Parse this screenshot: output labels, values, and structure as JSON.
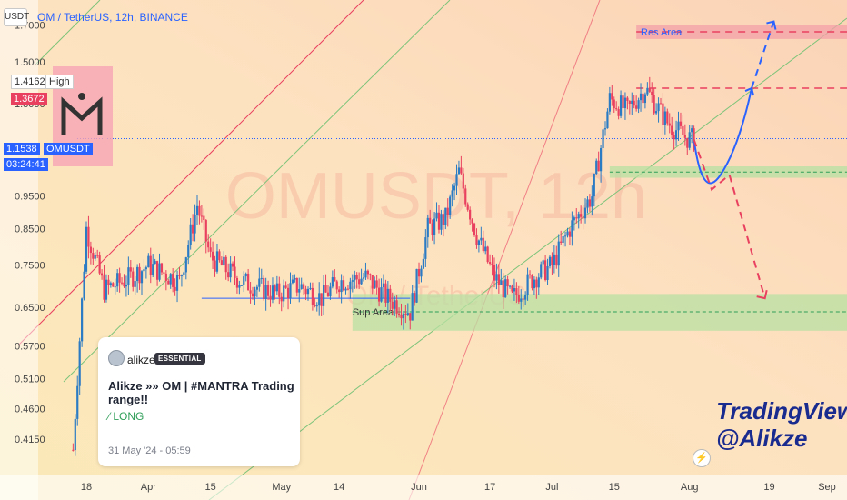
{
  "header": {
    "currency_button": "USDT",
    "symbol_title": "OM / TetherUS, 12h, BINANCE"
  },
  "watermark": {
    "main": "OMUSDT, 12h",
    "sub": "OM / TetherUS"
  },
  "price_labels": {
    "high_value": "1.4162",
    "high_text": "High",
    "marker_value": "1.3672",
    "current_value": "1.1538",
    "current_symbol": "OMUSDT",
    "countdown": "03:24:41"
  },
  "annotations": {
    "res_area": "Res Area",
    "sup_area": "Sup Area"
  },
  "idea_card": {
    "author": "alikze",
    "badge": "ESSENTIAL",
    "title": "Alikze »» OM | #MANTRA Trading range!!",
    "tag": "⁄ LONG",
    "date": "31 May '24 - 05:59"
  },
  "signature": {
    "line1": "TradingView",
    "line2": "@Alikze"
  },
  "colors": {
    "up": "#2b7bc4",
    "down": "#e9405f",
    "res_zone": "#f4a0a8",
    "sup_zone": "#b8e0a3",
    "projection": "#e9405f",
    "bullish_path": "#2962ff",
    "channel_green": "#7cc47a",
    "channel_red": "#e9405f"
  },
  "chart_data": {
    "type": "line",
    "title": "OM / TetherUS, 12h, BINANCE",
    "y_scale": "log",
    "ylim": [
      0.37,
      1.85
    ],
    "y_ticks": [
      "1.7000",
      "1.5000",
      "1.3000",
      "0.9500",
      "0.8500",
      "0.7500",
      "0.6500",
      "0.5700",
      "0.5100",
      "0.4600",
      "0.4150"
    ],
    "x_ticks": [
      "18",
      "Apr",
      "15",
      "May",
      "14",
      "Jun",
      "17",
      "Jul",
      "15",
      "Aug",
      "19",
      "Sep"
    ],
    "series": [
      {
        "name": "OMUSDT",
        "x": [
          "Mar 15",
          "Mar 18",
          "Mar 22",
          "Mar 28",
          "Apr 1",
          "Apr 8",
          "Apr 12",
          "Apr 15",
          "Apr 22",
          "Apr 30",
          "May 5",
          "May 10",
          "May 14",
          "May 20",
          "May 25",
          "May 30",
          "Jun 3",
          "Jun 7",
          "Jun 10",
          "Jun 14",
          "Jun 18",
          "Jun 22",
          "Jun 27",
          "Jul 1",
          "Jul 5",
          "Jul 10",
          "Jul 14",
          "Jul 18",
          "Jul 22",
          "Jul 27",
          "Jul 31",
          "Aug 2"
        ],
        "values": [
          0.4,
          0.85,
          0.69,
          0.72,
          0.75,
          0.71,
          0.92,
          0.77,
          0.71,
          0.68,
          0.7,
          0.67,
          0.71,
          0.72,
          0.67,
          0.64,
          0.85,
          0.88,
          1.03,
          0.83,
          0.72,
          0.67,
          0.72,
          0.75,
          0.85,
          0.95,
          1.32,
          1.27,
          1.37,
          1.22,
          1.16,
          1.15
        ]
      }
    ],
    "levels": {
      "resistance_zone": [
        1.62,
        1.7
      ],
      "resistance_line": 1.37,
      "current_price": 1.1538,
      "support_upper_zone": [
        1.01,
        1.05
      ],
      "support_lower_zone": [
        0.6,
        0.68
      ],
      "support_line": 0.64
    },
    "projections": [
      {
        "path": "bullish",
        "x": [
          "Aug 2",
          "Aug 8",
          "Aug 15",
          "Aug 20"
        ],
        "values": [
          1.15,
          1.02,
          1.37,
          1.72
        ]
      },
      {
        "path": "bearish",
        "x": [
          "Aug 2",
          "Aug 6",
          "Aug 10",
          "Aug 18"
        ],
        "values": [
          1.15,
          0.97,
          1.02,
          0.67
        ]
      }
    ]
  }
}
